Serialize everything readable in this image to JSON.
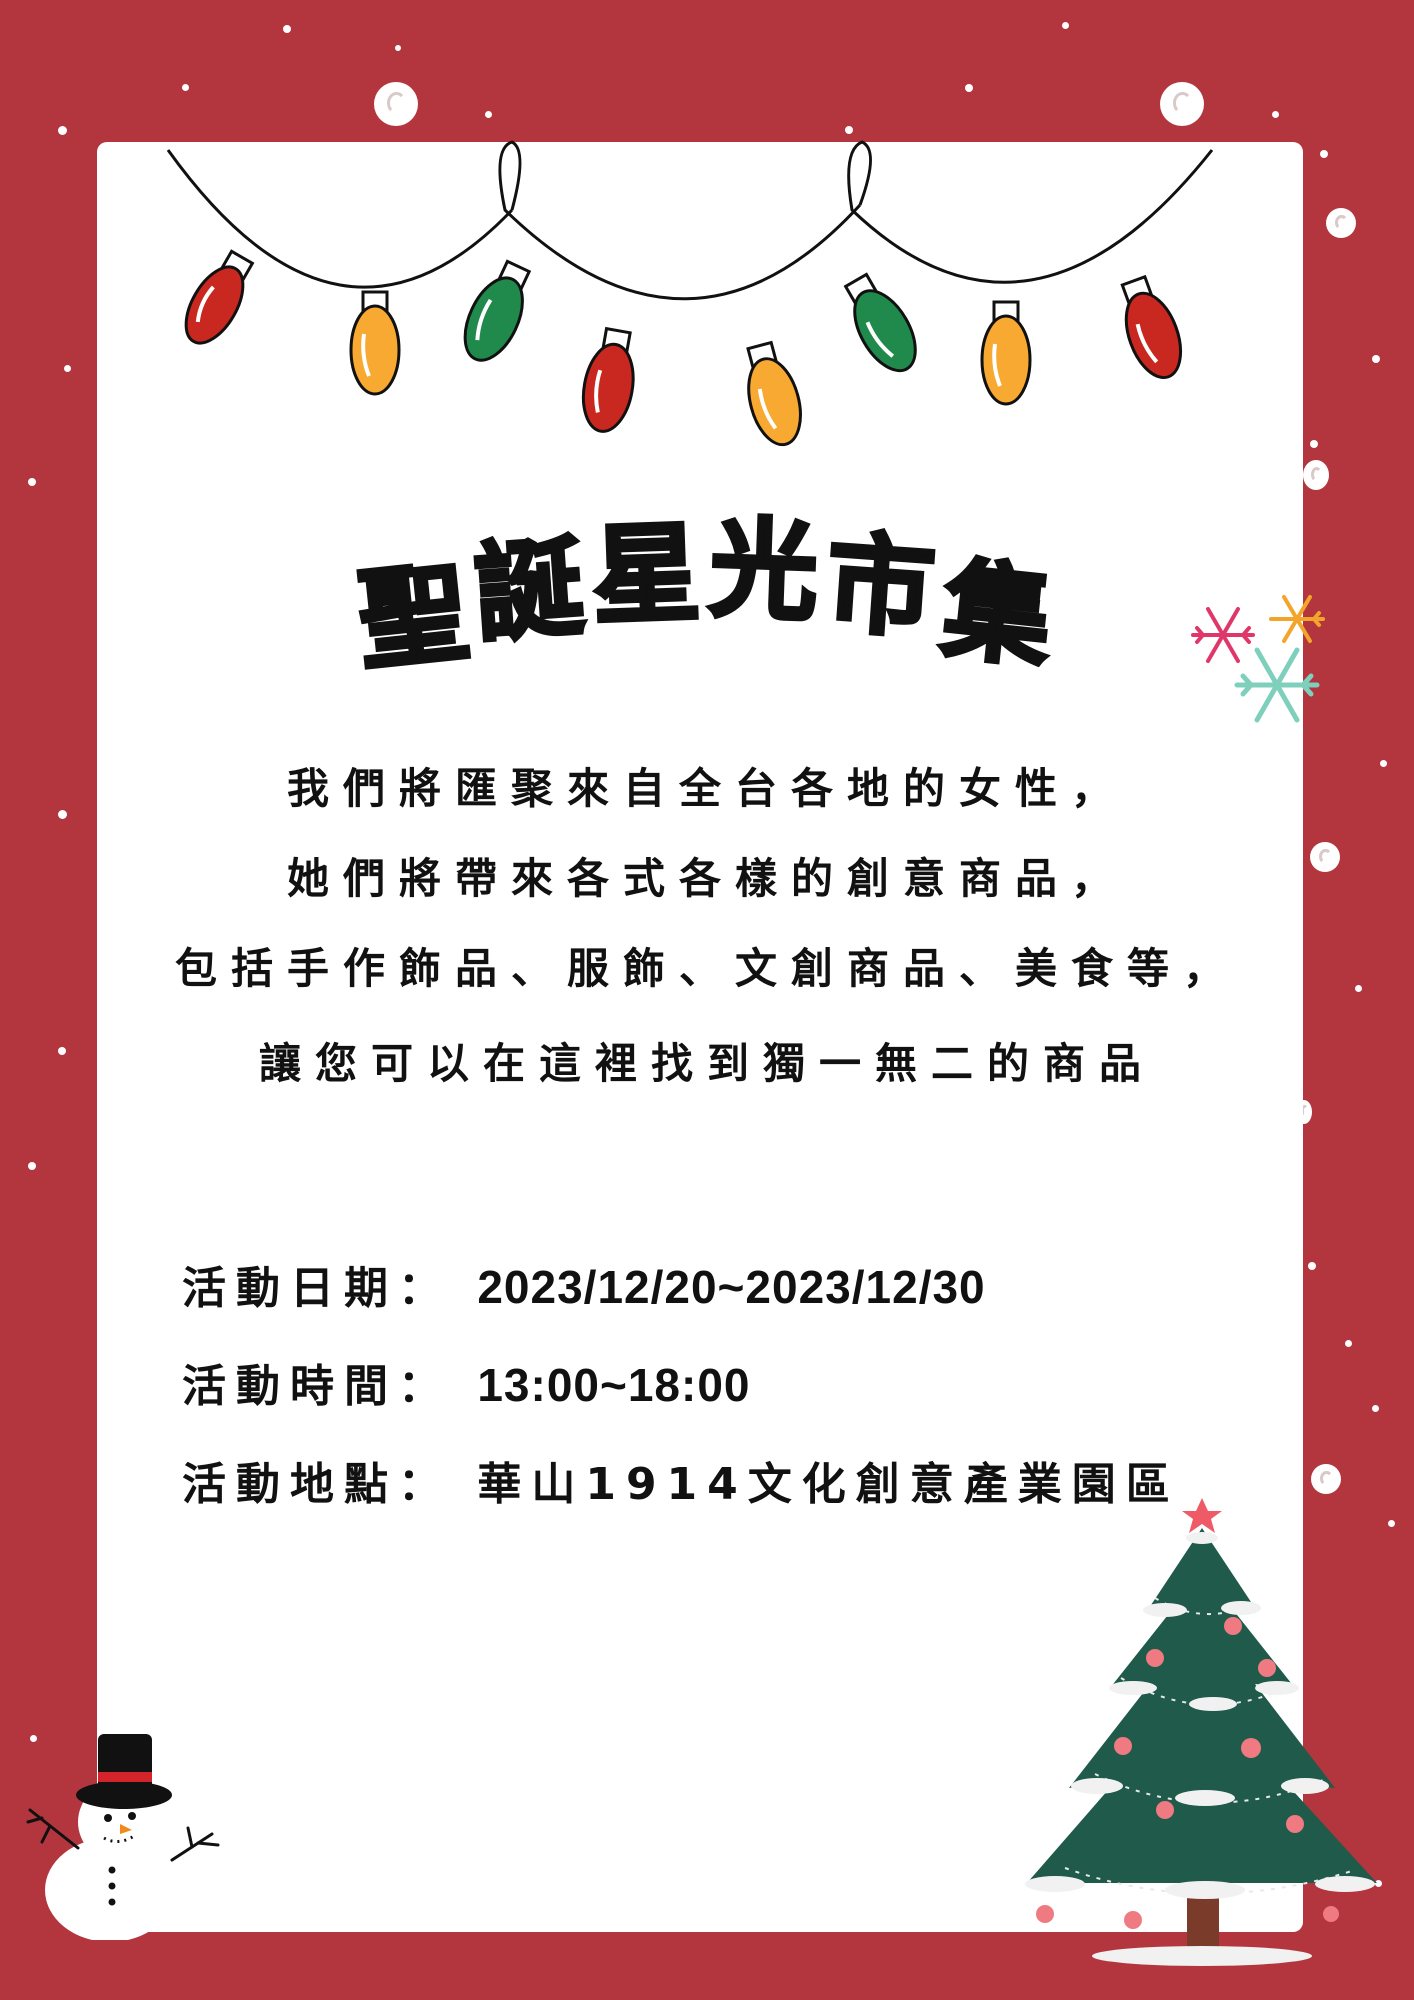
{
  "poster": {
    "title_chars": [
      "聖",
      "誕",
      "星",
      "光",
      "市",
      "集"
    ],
    "description_lines": [
      "我們將匯聚來自全台各地的女性，",
      "她們將帶來各式各樣的創意商品，",
      "包括手作飾品、服飾、文創商品、美食等，",
      "讓您可以在這裡找到獨一無二的商品"
    ],
    "date_label": "活動日期：",
    "date_value": "2023/12/20~2023/12/30",
    "time_label": "活動時間：",
    "time_value": "13:00~18:00",
    "location_label": "活動地點：",
    "location_value": "華山1914文化創意產業園區"
  },
  "colors": {
    "background": "#b3363e",
    "card": "#ffffff",
    "text": "#111111",
    "bulb_red": "#c8281f",
    "bulb_yellow": "#f7a932",
    "bulb_green": "#1f8a4c",
    "tree_green": "#1f5a4b"
  },
  "decorations": [
    "string-lights",
    "snowflakes",
    "snowman",
    "christmas-tree",
    "snow-dots"
  ]
}
